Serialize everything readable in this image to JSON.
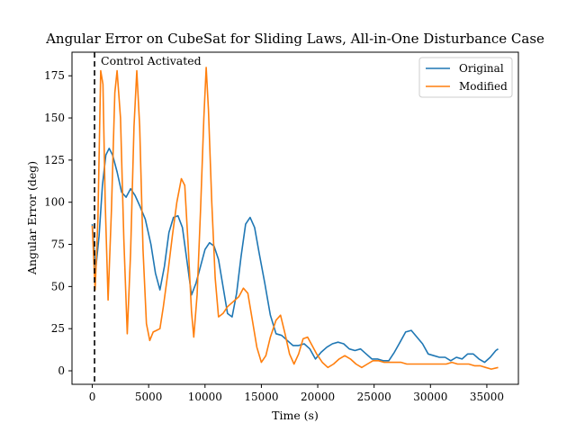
{
  "chart_data": {
    "type": "line",
    "title": "Angular Error on CubeSat for Sliding Laws, All-in-One Disturbance Case",
    "xlabel": "Time (s)",
    "ylabel": "Angular Error (deg)",
    "xlim": [
      -1800,
      37800
    ],
    "ylim": [
      -8,
      189
    ],
    "xticks": [
      0,
      5000,
      10000,
      15000,
      20000,
      25000,
      30000,
      35000
    ],
    "yticks": [
      0,
      25,
      50,
      75,
      100,
      125,
      150,
      175
    ],
    "grid": false,
    "legend_position": "top-right",
    "annotation": {
      "text": "Control Activated",
      "x": 200
    },
    "series": [
      {
        "name": "Original",
        "color": "#1f77b4",
        "points": [
          [
            0,
            87
          ],
          [
            300,
            60
          ],
          [
            600,
            80
          ],
          [
            900,
            110
          ],
          [
            1200,
            128
          ],
          [
            1500,
            132
          ],
          [
            1800,
            128
          ],
          [
            2200,
            118
          ],
          [
            2600,
            106
          ],
          [
            3000,
            103
          ],
          [
            3400,
            108
          ],
          [
            3800,
            104
          ],
          [
            4200,
            98
          ],
          [
            4700,
            90
          ],
          [
            5200,
            75
          ],
          [
            5600,
            58
          ],
          [
            6000,
            48
          ],
          [
            6400,
            62
          ],
          [
            6800,
            82
          ],
          [
            7200,
            91
          ],
          [
            7600,
            92
          ],
          [
            8000,
            85
          ],
          [
            8400,
            65
          ],
          [
            8800,
            45
          ],
          [
            9200,
            52
          ],
          [
            9600,
            62
          ],
          [
            10000,
            72
          ],
          [
            10400,
            76
          ],
          [
            10800,
            74
          ],
          [
            11200,
            66
          ],
          [
            11600,
            50
          ],
          [
            12000,
            34
          ],
          [
            12400,
            32
          ],
          [
            12800,
            46
          ],
          [
            13200,
            68
          ],
          [
            13600,
            87
          ],
          [
            14000,
            91
          ],
          [
            14400,
            85
          ],
          [
            14800,
            70
          ],
          [
            15300,
            52
          ],
          [
            15800,
            33
          ],
          [
            16300,
            22
          ],
          [
            16800,
            21
          ],
          [
            17300,
            18
          ],
          [
            17800,
            15
          ],
          [
            18300,
            15
          ],
          [
            18800,
            16
          ],
          [
            19300,
            13
          ],
          [
            19800,
            7
          ],
          [
            20300,
            11
          ],
          [
            20800,
            14
          ],
          [
            21300,
            16
          ],
          [
            21800,
            17
          ],
          [
            22300,
            16
          ],
          [
            22800,
            13
          ],
          [
            23300,
            12
          ],
          [
            23800,
            13
          ],
          [
            24300,
            10
          ],
          [
            24800,
            7
          ],
          [
            25300,
            7
          ],
          [
            25800,
            6
          ],
          [
            26300,
            6
          ],
          [
            26800,
            11
          ],
          [
            27300,
            17
          ],
          [
            27800,
            23
          ],
          [
            28300,
            24
          ],
          [
            28800,
            20
          ],
          [
            29300,
            16
          ],
          [
            29800,
            10
          ],
          [
            30300,
            9
          ],
          [
            30800,
            8
          ],
          [
            31300,
            8
          ],
          [
            31800,
            6
          ],
          [
            32300,
            8
          ],
          [
            32800,
            7
          ],
          [
            33300,
            10
          ],
          [
            33800,
            10
          ],
          [
            34300,
            7
          ],
          [
            34800,
            5
          ],
          [
            35300,
            8
          ],
          [
            35800,
            12
          ],
          [
            36000,
            13
          ]
        ]
      },
      {
        "name": "Modified",
        "color": "#ff7f0e",
        "points": [
          [
            0,
            86
          ],
          [
            250,
            48
          ],
          [
            500,
            90
          ],
          [
            750,
            178
          ],
          [
            950,
            170
          ],
          [
            1150,
            100
          ],
          [
            1400,
            42
          ],
          [
            1700,
            95
          ],
          [
            2000,
            165
          ],
          [
            2200,
            178
          ],
          [
            2500,
            150
          ],
          [
            2800,
            78
          ],
          [
            3100,
            22
          ],
          [
            3400,
            70
          ],
          [
            3700,
            145
          ],
          [
            3950,
            178
          ],
          [
            4200,
            145
          ],
          [
            4500,
            72
          ],
          [
            4800,
            28
          ],
          [
            5100,
            18
          ],
          [
            5400,
            23
          ],
          [
            5700,
            24
          ],
          [
            6000,
            25
          ],
          [
            6300,
            38
          ],
          [
            6700,
            58
          ],
          [
            7100,
            80
          ],
          [
            7500,
            100
          ],
          [
            7900,
            114
          ],
          [
            8200,
            110
          ],
          [
            8500,
            75
          ],
          [
            8800,
            35
          ],
          [
            9000,
            20
          ],
          [
            9300,
            45
          ],
          [
            9600,
            95
          ],
          [
            9900,
            150
          ],
          [
            10100,
            180
          ],
          [
            10300,
            155
          ],
          [
            10600,
            100
          ],
          [
            10900,
            55
          ],
          [
            11200,
            32
          ],
          [
            11600,
            34
          ],
          [
            12000,
            38
          ],
          [
            12500,
            41
          ],
          [
            13000,
            44
          ],
          [
            13400,
            49
          ],
          [
            13800,
            46
          ],
          [
            14200,
            30
          ],
          [
            14600,
            14
          ],
          [
            15000,
            5
          ],
          [
            15400,
            9
          ],
          [
            15800,
            20
          ],
          [
            16300,
            30
          ],
          [
            16700,
            33
          ],
          [
            17100,
            22
          ],
          [
            17500,
            10
          ],
          [
            17900,
            4
          ],
          [
            18300,
            10
          ],
          [
            18700,
            19
          ],
          [
            19100,
            20
          ],
          [
            19500,
            15
          ],
          [
            19900,
            10
          ],
          [
            20400,
            5
          ],
          [
            20900,
            2
          ],
          [
            21400,
            4
          ],
          [
            21900,
            7
          ],
          [
            22400,
            9
          ],
          [
            22900,
            7
          ],
          [
            23400,
            4
          ],
          [
            23900,
            2
          ],
          [
            24400,
            4
          ],
          [
            24900,
            6
          ],
          [
            25400,
            6
          ],
          [
            25900,
            5
          ],
          [
            26400,
            5
          ],
          [
            26900,
            5
          ],
          [
            27400,
            5
          ],
          [
            27900,
            4
          ],
          [
            28400,
            4
          ],
          [
            28900,
            4
          ],
          [
            29400,
            4
          ],
          [
            29900,
            4
          ],
          [
            30400,
            4
          ],
          [
            30900,
            4
          ],
          [
            31400,
            4
          ],
          [
            31900,
            5
          ],
          [
            32400,
            4
          ],
          [
            32900,
            4
          ],
          [
            33400,
            4
          ],
          [
            33900,
            3
          ],
          [
            34400,
            3
          ],
          [
            34900,
            2
          ],
          [
            35400,
            1
          ],
          [
            36000,
            2
          ]
        ]
      }
    ]
  }
}
